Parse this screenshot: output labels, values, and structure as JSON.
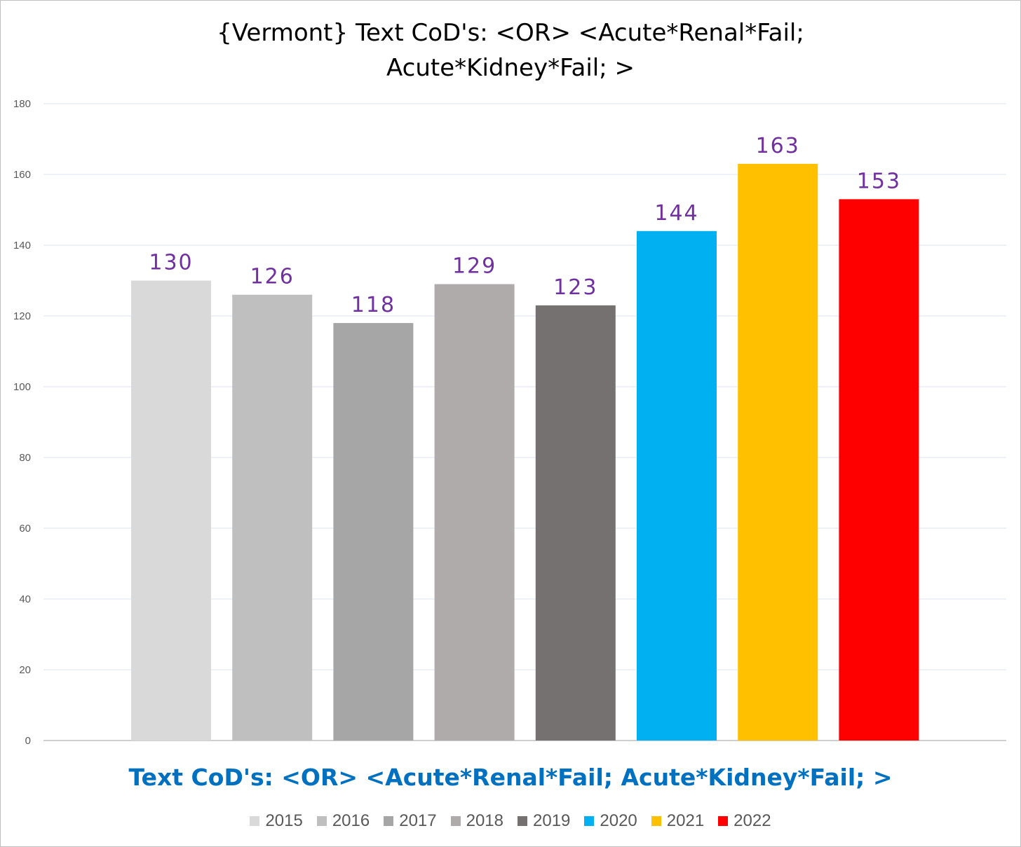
{
  "chart_data": {
    "type": "bar",
    "title_lines": [
      "{Vermont}  Text CoD's: <OR> <Acute*Renal*Fail;",
      "Acute*Kidney*Fail; >"
    ],
    "xlabel": "Text CoD's: <OR> <Acute*Renal*Fail; Acute*Kidney*Fail; >",
    "ylabel": "",
    "ylim": [
      0,
      180
    ],
    "yticks": [
      0,
      20,
      40,
      60,
      80,
      100,
      120,
      140,
      160,
      180
    ],
    "grid": true,
    "legend_position": "bottom",
    "series": [
      {
        "name": "2015",
        "value": 130,
        "color": "#d9d9d9"
      },
      {
        "name": "2016",
        "value": 126,
        "color": "#bfbfbf"
      },
      {
        "name": "2017",
        "value": 118,
        "color": "#a6a6a6"
      },
      {
        "name": "2018",
        "value": 129,
        "color": "#afabab"
      },
      {
        "name": "2019",
        "value": 123,
        "color": "#767171"
      },
      {
        "name": "2020",
        "value": 144,
        "color": "#00b0f0"
      },
      {
        "name": "2021",
        "value": 163,
        "color": "#ffc000"
      },
      {
        "name": "2022",
        "value": 153,
        "color": "#ff0000"
      }
    ],
    "data_label_color": "#7030a0",
    "xlabel_color": "#0070c0"
  }
}
